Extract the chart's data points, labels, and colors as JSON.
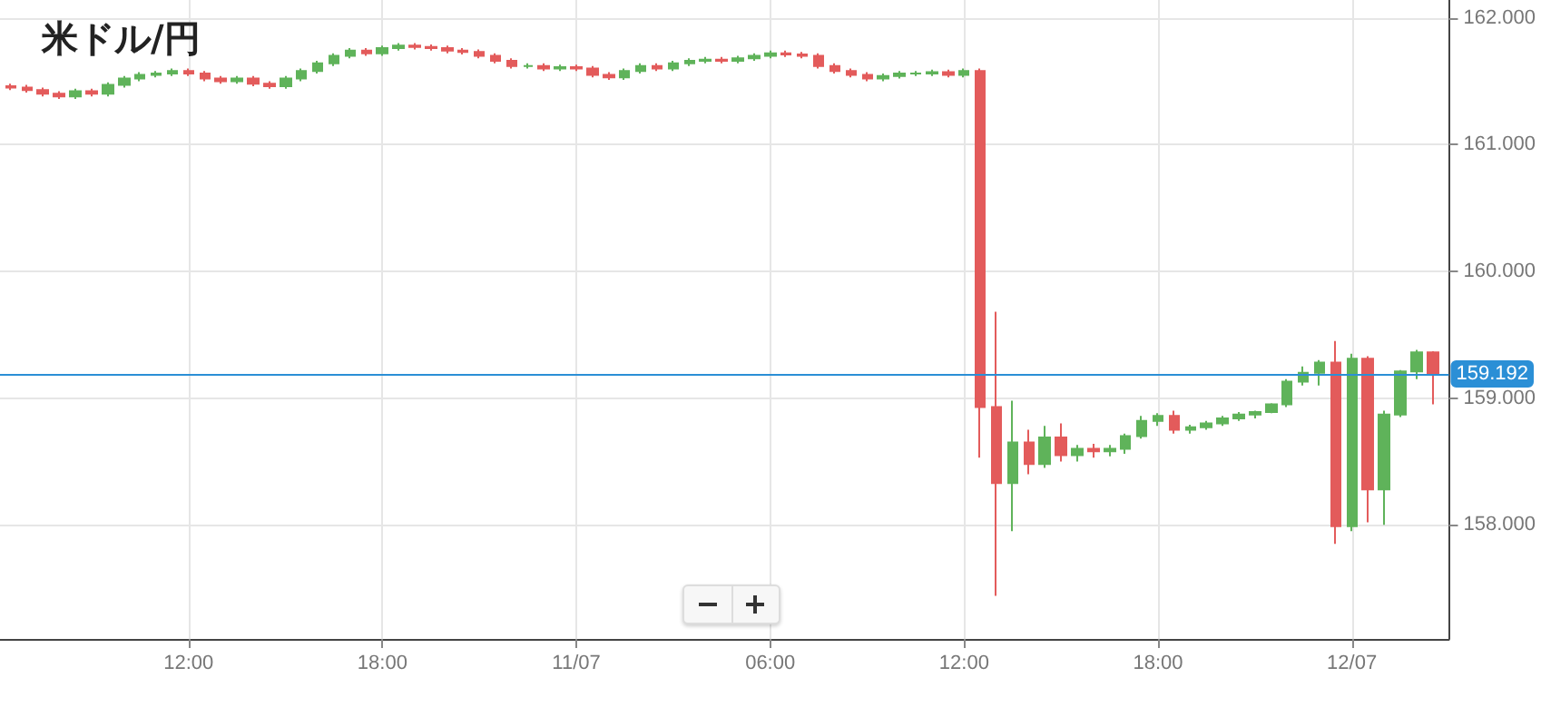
{
  "chart_data": {
    "type": "candlestick",
    "title": "米ドル/円",
    "x": [
      "--07-10T06:30",
      "--07-10T07:00",
      "--07-10T07:30",
      "--07-10T08:00",
      "--07-10T08:30",
      "--07-10T09:00",
      "--07-10T09:30",
      "--07-10T10:00",
      "--07-10T10:30",
      "--07-10T11:00",
      "--07-10T11:30",
      "--07-10T12:00",
      "--07-10T12:30",
      "--07-10T13:00",
      "--07-10T13:30",
      "--07-10T14:00",
      "--07-10T14:30",
      "--07-10T15:00",
      "--07-10T15:30",
      "--07-10T16:00",
      "--07-10T16:30",
      "--07-10T17:00",
      "--07-10T17:30",
      "--07-10T18:00",
      "--07-10T18:30",
      "--07-10T19:00",
      "--07-10T19:30",
      "--07-10T20:00",
      "--07-10T20:30",
      "--07-10T21:00",
      "--07-10T21:30",
      "--07-10T22:00",
      "--07-10T22:30",
      "--07-10T23:00",
      "--07-10T23:30",
      "--07-11T00:00",
      "--07-11T00:30",
      "--07-11T01:00",
      "--07-11T01:30",
      "--07-11T02:00",
      "--07-11T02:30",
      "--07-11T03:00",
      "--07-11T03:30",
      "--07-11T04:00",
      "--07-11T04:30",
      "--07-11T05:00",
      "--07-11T05:30",
      "--07-11T06:00",
      "--07-11T06:30",
      "--07-11T07:00",
      "--07-11T07:30",
      "--07-11T08:00",
      "--07-11T08:30",
      "--07-11T09:00",
      "--07-11T09:30",
      "--07-11T10:00",
      "--07-11T10:30",
      "--07-11T11:00",
      "--07-11T11:30",
      "--07-11T12:00",
      "--07-11T12:30",
      "--07-11T13:00",
      "--07-11T13:30",
      "--07-11T14:00",
      "--07-11T14:30",
      "--07-11T15:00",
      "--07-11T15:30",
      "--07-11T16:00",
      "--07-11T16:30",
      "--07-11T17:00",
      "--07-11T17:30",
      "--07-11T18:00",
      "--07-11T18:30",
      "--07-11T19:00",
      "--07-11T19:30",
      "--07-11T20:00",
      "--07-11T20:30",
      "--07-11T21:00",
      "--07-11T21:30",
      "--07-11T22:00",
      "--07-11T22:30",
      "--07-11T23:00",
      "--07-11T23:30",
      "--07-12T00:00",
      "--07-12T00:30",
      "--07-12T01:00",
      "--07-12T01:30",
      "--07-12T02:00",
      "--07-12T02:30"
    ],
    "ohlc": [
      [
        161.46,
        161.48,
        161.43,
        161.45
      ],
      [
        161.45,
        161.47,
        161.41,
        161.43
      ],
      [
        161.43,
        161.45,
        161.38,
        161.4
      ],
      [
        161.4,
        161.42,
        161.36,
        161.38
      ],
      [
        161.38,
        161.44,
        161.36,
        161.42
      ],
      [
        161.42,
        161.44,
        161.38,
        161.4
      ],
      [
        161.4,
        161.49,
        161.38,
        161.47
      ],
      [
        161.47,
        161.54,
        161.45,
        161.52
      ],
      [
        161.52,
        161.57,
        161.5,
        161.55
      ],
      [
        161.55,
        161.58,
        161.53,
        161.56
      ],
      [
        161.56,
        161.6,
        161.54,
        161.58
      ],
      [
        161.58,
        161.6,
        161.54,
        161.56
      ],
      [
        161.56,
        161.58,
        161.5,
        161.52
      ],
      [
        161.52,
        161.54,
        161.48,
        161.5
      ],
      [
        161.5,
        161.54,
        161.48,
        161.52
      ],
      [
        161.52,
        161.54,
        161.46,
        161.48
      ],
      [
        161.48,
        161.5,
        161.44,
        161.46
      ],
      [
        161.46,
        161.54,
        161.44,
        161.52
      ],
      [
        161.52,
        161.6,
        161.5,
        161.58
      ],
      [
        161.58,
        161.66,
        161.56,
        161.64
      ],
      [
        161.64,
        161.72,
        161.62,
        161.7
      ],
      [
        161.7,
        161.76,
        161.68,
        161.74
      ],
      [
        161.74,
        161.76,
        161.7,
        161.72
      ],
      [
        161.72,
        161.78,
        161.7,
        161.76
      ],
      [
        161.76,
        161.8,
        161.74,
        161.78
      ],
      [
        161.78,
        161.8,
        161.75,
        161.77
      ],
      [
        161.77,
        161.79,
        161.74,
        161.76
      ],
      [
        161.76,
        161.78,
        161.72,
        161.74
      ],
      [
        161.74,
        161.76,
        161.71,
        161.73
      ],
      [
        161.73,
        161.75,
        161.68,
        161.7
      ],
      [
        161.7,
        161.72,
        161.64,
        161.66
      ],
      [
        161.66,
        161.68,
        161.6,
        161.62
      ],
      [
        161.62,
        161.64,
        161.6,
        161.62
      ],
      [
        161.62,
        161.64,
        161.58,
        161.6
      ],
      [
        161.6,
        161.63,
        161.58,
        161.61
      ],
      [
        161.61,
        161.63,
        161.58,
        161.6
      ],
      [
        161.6,
        161.62,
        161.53,
        161.55
      ],
      [
        161.55,
        161.57,
        161.51,
        161.53
      ],
      [
        161.53,
        161.6,
        161.51,
        161.58
      ],
      [
        161.58,
        161.64,
        161.56,
        161.62
      ],
      [
        161.62,
        161.64,
        161.58,
        161.6
      ],
      [
        161.6,
        161.66,
        161.58,
        161.64
      ],
      [
        161.64,
        161.68,
        161.62,
        161.66
      ],
      [
        161.66,
        161.69,
        161.64,
        161.67
      ],
      [
        161.67,
        161.69,
        161.64,
        161.66
      ],
      [
        161.66,
        161.7,
        161.64,
        161.68
      ],
      [
        161.68,
        161.72,
        161.66,
        161.7
      ],
      [
        161.7,
        161.74,
        161.68,
        161.72
      ],
      [
        161.72,
        161.74,
        161.69,
        161.71
      ],
      [
        161.71,
        161.73,
        161.68,
        161.7
      ],
      [
        161.7,
        161.72,
        161.6,
        161.62
      ],
      [
        161.62,
        161.64,
        161.56,
        161.58
      ],
      [
        161.58,
        161.6,
        161.53,
        161.55
      ],
      [
        161.55,
        161.57,
        161.5,
        161.52
      ],
      [
        161.52,
        161.56,
        161.5,
        161.54
      ],
      [
        161.54,
        161.58,
        161.52,
        161.56
      ],
      [
        161.56,
        161.58,
        161.54,
        161.56
      ],
      [
        161.56,
        161.59,
        161.54,
        161.57
      ],
      [
        161.57,
        161.59,
        161.53,
        161.55
      ],
      [
        161.55,
        161.6,
        161.53,
        161.58
      ],
      [
        161.58,
        161.6,
        158.53,
        158.93
      ],
      [
        158.93,
        159.68,
        157.44,
        158.33
      ],
      [
        158.33,
        158.98,
        157.95,
        158.65
      ],
      [
        158.65,
        158.75,
        158.4,
        158.48
      ],
      [
        158.48,
        158.78,
        158.45,
        158.69
      ],
      [
        158.69,
        158.8,
        158.5,
        158.55
      ],
      [
        158.55,
        158.63,
        158.5,
        158.6
      ],
      [
        158.6,
        158.64,
        158.53,
        158.58
      ],
      [
        158.58,
        158.63,
        158.54,
        158.6
      ],
      [
        158.6,
        158.72,
        158.56,
        158.7
      ],
      [
        158.7,
        158.86,
        158.68,
        158.82
      ],
      [
        158.82,
        158.88,
        158.78,
        158.86
      ],
      [
        158.86,
        158.9,
        158.72,
        158.75
      ],
      [
        158.75,
        158.79,
        158.72,
        158.77
      ],
      [
        158.77,
        158.82,
        158.75,
        158.8
      ],
      [
        158.8,
        158.86,
        158.78,
        158.84
      ],
      [
        158.84,
        158.89,
        158.82,
        158.87
      ],
      [
        158.87,
        158.9,
        158.84,
        158.89
      ],
      [
        158.89,
        158.96,
        158.88,
        158.95
      ],
      [
        158.95,
        159.15,
        158.93,
        159.13
      ],
      [
        159.13,
        159.25,
        159.1,
        159.2
      ],
      [
        159.2,
        159.3,
        159.1,
        159.28
      ],
      [
        159.28,
        159.45,
        157.85,
        157.99
      ],
      [
        157.99,
        159.35,
        157.95,
        159.31
      ],
      [
        159.31,
        159.33,
        158.02,
        158.28
      ],
      [
        158.28,
        158.9,
        158.0,
        158.87
      ],
      [
        158.87,
        159.22,
        158.85,
        159.21
      ],
      [
        159.21,
        159.38,
        159.15,
        159.36
      ],
      [
        159.36,
        159.37,
        158.95,
        159.19
      ]
    ],
    "xlim": [
      "--07-10T06:10",
      "--07-12T03:00"
    ],
    "xticks": [
      {
        "value": "--07-10T12:00",
        "label": "12:00"
      },
      {
        "value": "--07-10T18:00",
        "label": "18:00"
      },
      {
        "value": "--07-11T00:00",
        "label": "11/07"
      },
      {
        "value": "--07-11T06:00",
        "label": "06:00"
      },
      {
        "value": "--07-11T12:00",
        "label": "12:00"
      },
      {
        "value": "--07-11T18:00",
        "label": "18:00"
      },
      {
        "value": "--07-12T00:00",
        "label": "12/07"
      }
    ],
    "ylim": [
      157.1,
      162.14
    ],
    "yticks": [
      {
        "value": 158,
        "label": "158.000"
      },
      {
        "value": 159,
        "label": "159.000"
      },
      {
        "value": 160,
        "label": "160.000"
      },
      {
        "value": 161,
        "label": "161.000"
      },
      {
        "value": 162,
        "label": "162.000"
      }
    ],
    "ref_lines": [
      {
        "axis": "y",
        "value": 159.192,
        "label": "159.192",
        "color": "#2b8fd6"
      }
    ],
    "grid": true
  }
}
